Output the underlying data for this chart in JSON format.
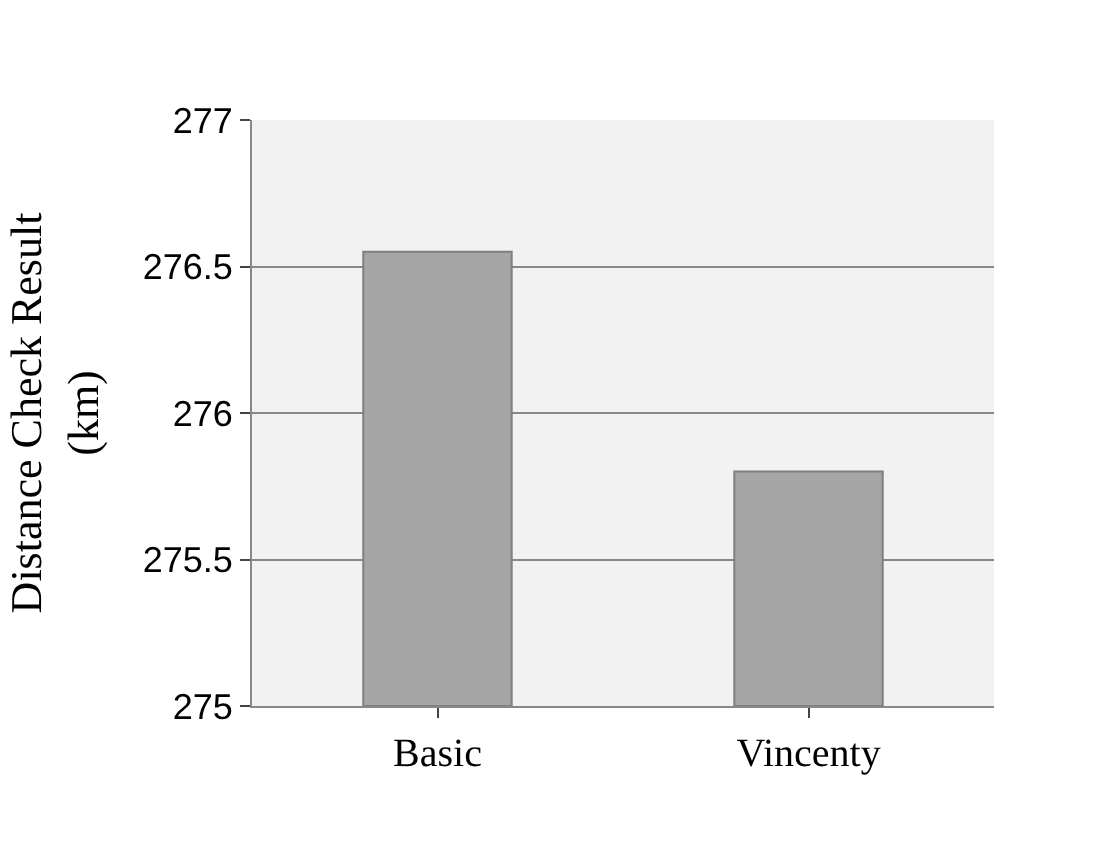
{
  "chart_data": {
    "type": "bar",
    "ylabel": "Distance Check Result\n(km)",
    "categories": [
      "Basic",
      "Vincenty"
    ],
    "values": [
      276.55,
      275.8
    ],
    "color": "#a6a6a6",
    "ylim": [
      275,
      277
    ],
    "yticks": [
      275,
      275.5,
      276,
      276.5,
      277
    ],
    "grid": "y",
    "legend": false
  }
}
